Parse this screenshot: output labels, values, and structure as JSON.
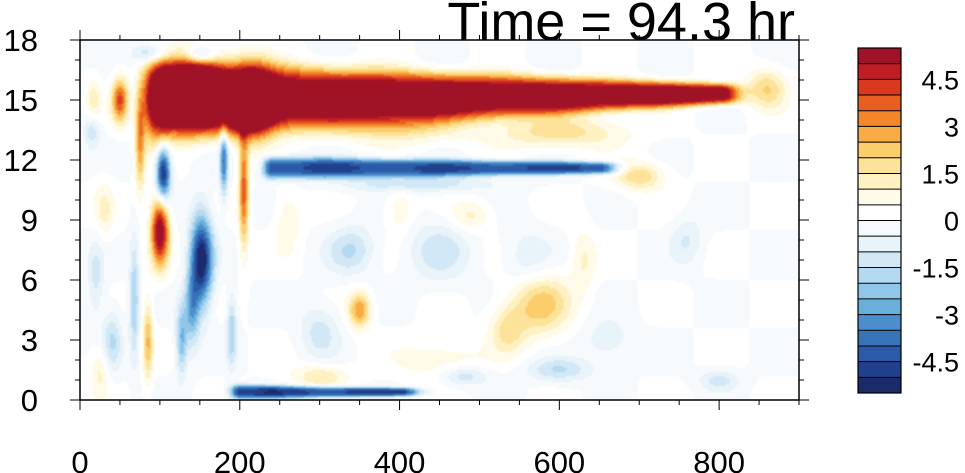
{
  "chart_data": {
    "type": "heatmap",
    "title": "Time = 94.3 hr",
    "xlabel": "",
    "ylabel": "",
    "xlim": [
      0,
      900
    ],
    "ylim": [
      0,
      18
    ],
    "x_ticks": [
      "0",
      "200",
      "400",
      "600",
      "800"
    ],
    "y_ticks": [
      "0",
      "3",
      "6",
      "9",
      "12",
      "15",
      "18"
    ],
    "colorbar": {
      "levels": [
        -5.5,
        -5,
        -4.5,
        -4,
        -3.5,
        -3,
        -2.5,
        -2,
        -1.5,
        -1,
        -0.5,
        0,
        0.5,
        1,
        1.5,
        2,
        2.5,
        3,
        3.5,
        4,
        4.5,
        5,
        5.5
      ],
      "colors": [
        "#1b2a6b",
        "#21408c",
        "#2b5ba8",
        "#3873b8",
        "#4a8fcc",
        "#6aaedb",
        "#8fc6ea",
        "#b4daf2",
        "#d2e8f6",
        "#e8f3fa",
        "#f6fafd",
        "#ffffff",
        "#fffbe8",
        "#fff1c2",
        "#fde39a",
        "#fccd6c",
        "#f9ab46",
        "#f3852b",
        "#e95f22",
        "#d8391f",
        "#bf1f24",
        "#a01225"
      ],
      "tick_labels": [
        "4.5",
        "3",
        "1.5",
        "0",
        "-1.5",
        "-3",
        "-4.5"
      ],
      "tick_values": [
        4.5,
        3,
        1.5,
        0,
        -1.5,
        -3,
        -4.5
      ]
    },
    "features": [
      {
        "shape": "band",
        "x": [
          110,
          800
        ],
        "y_center": 15,
        "y_center_end": 15.3,
        "thickness": [
          1.8,
          0.5
        ],
        "value": 6.5
      },
      {
        "shape": "band",
        "x": [
          240,
          650
        ],
        "y_center": 11.6,
        "y_center_end": 11.6,
        "thickness": [
          0.55,
          0.3
        ],
        "value": -4.5
      },
      {
        "shape": "band",
        "x": [
          200,
          400
        ],
        "y_center": 0.4,
        "y_center_end": 0.4,
        "thickness": [
          0.35,
          0.2
        ],
        "value": -4.8
      },
      {
        "shape": "blob",
        "x": 93,
        "y": 15,
        "rx": 14,
        "ry": 1.9,
        "value": 6.5
      },
      {
        "shape": "blob",
        "x": 145,
        "y": 15.6,
        "rx": 35,
        "ry": 1.6,
        "value": 6.5
      },
      {
        "shape": "blob",
        "x": 215,
        "y": 14.9,
        "rx": 26,
        "ry": 1.7,
        "value": 6
      },
      {
        "shape": "blob",
        "x": 104,
        "y": 11.3,
        "rx": 9,
        "ry": 1.4,
        "value": -5.5
      },
      {
        "shape": "blob",
        "x": 100,
        "y": 8.5,
        "rx": 11,
        "ry": 1.7,
        "value": 6
      },
      {
        "shape": "blob",
        "x": 152,
        "y": 7,
        "rx": 14,
        "ry": 2.3,
        "value": -5.5
      },
      {
        "shape": "blob",
        "x": 140,
        "y": 4.5,
        "rx": 9,
        "ry": 1.8,
        "value": -2.5
      },
      {
        "shape": "blob",
        "x": 127,
        "y": 3,
        "rx": 7,
        "ry": 1.7,
        "value": -2.5
      },
      {
        "shape": "blob",
        "x": 205,
        "y": 10.5,
        "rx": 6,
        "ry": 2.8,
        "value": 3.8
      },
      {
        "shape": "blob",
        "x": 180,
        "y": 12,
        "rx": 5,
        "ry": 1.8,
        "value": -3.5
      },
      {
        "shape": "blob",
        "x": 190,
        "y": 3.5,
        "rx": 6,
        "ry": 1.8,
        "value": -2
      },
      {
        "shape": "blob",
        "x": 75,
        "y": 13,
        "rx": 6,
        "ry": 2.5,
        "value": 3
      },
      {
        "shape": "blob",
        "x": 68,
        "y": 5,
        "rx": 6,
        "ry": 3,
        "value": -2
      },
      {
        "shape": "blob",
        "x": 85,
        "y": 3,
        "rx": 6,
        "ry": 2,
        "value": 2.5
      },
      {
        "shape": "blob",
        "x": 50,
        "y": 15,
        "rx": 10,
        "ry": 1.1,
        "value": 4
      },
      {
        "shape": "blob",
        "x": 17,
        "y": 15,
        "rx": 9,
        "ry": 1.2,
        "value": 1.2
      },
      {
        "shape": "blob",
        "x": 15,
        "y": 13.5,
        "rx": 10,
        "ry": 0.8,
        "value": -1.5
      },
      {
        "shape": "blob",
        "x": 30,
        "y": 9.5,
        "rx": 12,
        "ry": 1.5,
        "value": 1
      },
      {
        "shape": "blob",
        "x": 20,
        "y": 6,
        "rx": 10,
        "ry": 2,
        "value": -1.2
      },
      {
        "shape": "blob",
        "x": 40,
        "y": 3,
        "rx": 12,
        "ry": 1.6,
        "value": -1.5
      },
      {
        "shape": "blob",
        "x": 25,
        "y": 1.5,
        "rx": 12,
        "ry": 1.3,
        "value": 1.2
      },
      {
        "shape": "blob",
        "x": 90,
        "y": 17.3,
        "rx": 20,
        "ry": 0.5,
        "value": -2.5
      },
      {
        "shape": "blob",
        "x": 150,
        "y": 17.2,
        "rx": 20,
        "ry": 0.5,
        "value": -3
      },
      {
        "shape": "blob",
        "x": 350,
        "y": 4.5,
        "rx": 14,
        "ry": 0.9,
        "value": 3
      },
      {
        "shape": "blob",
        "x": 575,
        "y": 4.8,
        "rx": 38,
        "ry": 1.6,
        "value": 2.3
      },
      {
        "shape": "blob",
        "x": 535,
        "y": 3.5,
        "rx": 22,
        "ry": 1.2,
        "value": 1.5
      },
      {
        "shape": "blob",
        "x": 700,
        "y": 11.2,
        "rx": 30,
        "ry": 0.7,
        "value": 2
      },
      {
        "shape": "blob",
        "x": 400,
        "y": 9.5,
        "rx": 18,
        "ry": 1.2,
        "value": 1
      },
      {
        "shape": "blob",
        "x": 490,
        "y": 9.2,
        "rx": 26,
        "ry": 0.8,
        "value": 1.2
      },
      {
        "shape": "blob",
        "x": 260,
        "y": 9,
        "rx": 16,
        "ry": 1.6,
        "value": 1
      },
      {
        "shape": "blob",
        "x": 340,
        "y": 7.5,
        "rx": 30,
        "ry": 1.2,
        "value": -1.5
      },
      {
        "shape": "blob",
        "x": 450,
        "y": 7.5,
        "rx": 40,
        "ry": 1.6,
        "value": -1.2
      },
      {
        "shape": "blob",
        "x": 560,
        "y": 7,
        "rx": 30,
        "ry": 1.5,
        "value": -1
      },
      {
        "shape": "blob",
        "x": 760,
        "y": 8,
        "rx": 20,
        "ry": 1.2,
        "value": -1
      },
      {
        "shape": "blob",
        "x": 630,
        "y": 7,
        "rx": 15,
        "ry": 1.6,
        "value": 1
      },
      {
        "shape": "blob",
        "x": 300,
        "y": 3.5,
        "rx": 25,
        "ry": 1.4,
        "value": -1.2
      },
      {
        "shape": "blob",
        "x": 450,
        "y": 2,
        "rx": 50,
        "ry": 1,
        "value": 1
      },
      {
        "shape": "blob",
        "x": 480,
        "y": 1.2,
        "rx": 30,
        "ry": 0.5,
        "value": -1.5
      },
      {
        "shape": "blob",
        "x": 600,
        "y": 1.5,
        "rx": 40,
        "ry": 0.6,
        "value": -1.5
      },
      {
        "shape": "blob",
        "x": 660,
        "y": 3,
        "rx": 30,
        "ry": 1,
        "value": -1
      },
      {
        "shape": "blob",
        "x": 800,
        "y": 1,
        "rx": 25,
        "ry": 0.5,
        "value": -1.2
      },
      {
        "shape": "blob",
        "x": 300,
        "y": 1.2,
        "rx": 35,
        "ry": 0.6,
        "value": 1.5
      },
      {
        "shape": "blob",
        "x": 400,
        "y": 13.6,
        "rx": 80,
        "ry": 0.8,
        "value": 1.6
      },
      {
        "shape": "blob",
        "x": 600,
        "y": 13.4,
        "rx": 80,
        "ry": 0.8,
        "value": 1.8
      },
      {
        "shape": "blob",
        "x": 420,
        "y": 10.8,
        "rx": 90,
        "ry": 0.4,
        "value": -1.5
      },
      {
        "shape": "blob",
        "x": 860,
        "y": 15.6,
        "rx": 25,
        "ry": 1,
        "value": 2
      }
    ]
  }
}
